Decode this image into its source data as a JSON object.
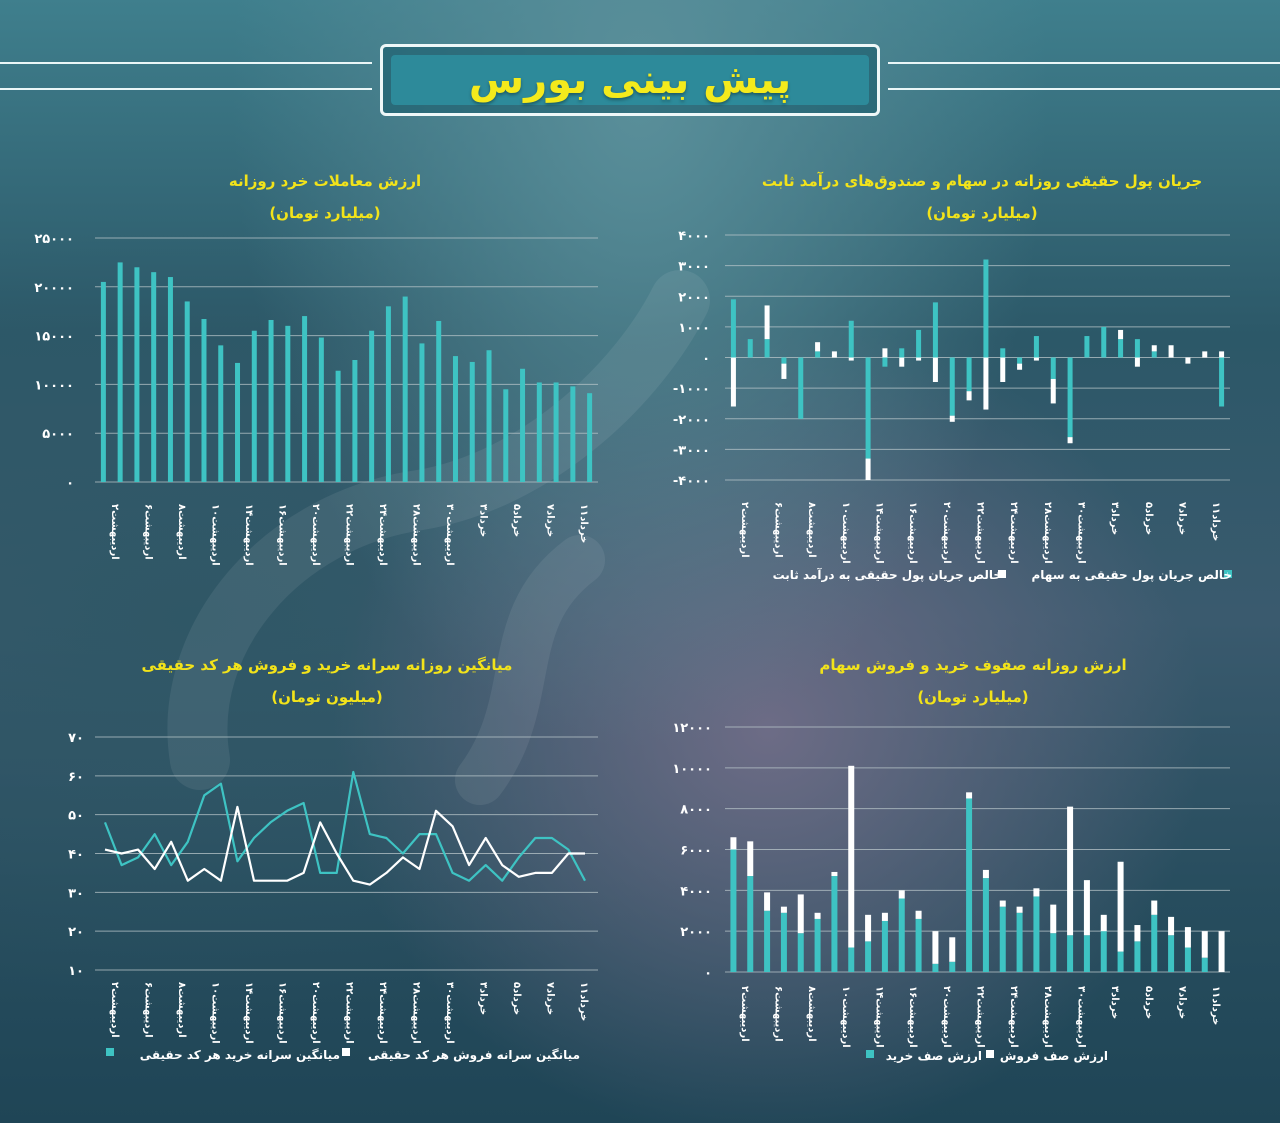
{
  "header": {
    "title": "پیش بینی بورس"
  },
  "colors": {
    "teal": "#3ec3c3",
    "white": "#ffffff",
    "title_yellow": "#f2e31a",
    "grid": "#b9c6ca"
  },
  "charts": [
    {
      "id": "tl",
      "title": "ارزش معاملات خرد روزانه",
      "subtitle": "(میلیارد تومان)"
    },
    {
      "id": "tr",
      "title": "جریان پول حقیقی روزانه در سهام و صندوق‌های درآمد ثابت",
      "subtitle": "(میلیارد تومان)",
      "legend": [
        "خالص جریان پول حقیقی به سهام",
        "خالص جریان پول حقیقی به درآمد ثابت"
      ]
    },
    {
      "id": "bl",
      "title": "میانگین روزانه سرانه خرید و فروش هر کد حقیقی",
      "subtitle": "(میلیون تومان)",
      "legend": [
        "میانگین سرانه خرید هر کد حقیقی",
        "میانگین سرانه فروش هر کد حقیقی"
      ]
    },
    {
      "id": "br",
      "title": "ارزش روزانه صفوف خرید و فروش سهام",
      "subtitle": "(میلیارد تومان)",
      "legend": [
        "ارزش صف خرید",
        "ارزش صف فروش"
      ]
    }
  ],
  "chart_data": [
    {
      "type": "bar",
      "title": "ارزش معاملات خرد روزانه",
      "ylabel": "(میلیارد تومان)",
      "ylim": [
        0,
        25000
      ],
      "yticks": [
        "۰",
        "۵۰۰۰",
        "۱۰۰۰۰",
        "۱۵۰۰۰",
        "۲۰۰۰۰",
        "۲۵۰۰۰"
      ],
      "xticklabels": [
        "اردیبهشت۲",
        "اردیبهشت۶",
        "اردیبهشت۸",
        "اردیبهشت۱۰",
        "اردیبهشت۱۴",
        "اردیبهشت۱۶",
        "اردیبهشت۲۰",
        "اردیبهشت۲۲",
        "اردیبهشت۲۴",
        "اردیبهشت۲۸",
        "اردیبهشت۳۰",
        "خرداد۳",
        "خرداد۵",
        "خرداد۷",
        "خرداد۱۱"
      ],
      "values": [
        20500,
        22500,
        22000,
        21500,
        21000,
        18500,
        16700,
        14000,
        12200,
        15500,
        16600,
        16000,
        17000,
        14800,
        11400,
        12500,
        15500,
        18000,
        19000,
        14200,
        16500,
        12900,
        12300,
        13500,
        9500,
        11600,
        10200,
        10200,
        9800,
        9100
      ]
    },
    {
      "type": "bar",
      "title": "جریان پول حقیقی روزانه در سهام و صندوق‌های درآمد ثابت",
      "ylabel": "(میلیارد تومان)",
      "ylim": [
        -4000,
        4000
      ],
      "yticks": [
        "-۴۰۰۰",
        "-۳۰۰۰",
        "-۲۰۰۰",
        "-۱۰۰۰",
        "۰",
        "۱۰۰۰",
        "۲۰۰۰",
        "۳۰۰۰",
        "۴۰۰۰"
      ],
      "xticklabels": [
        "اردیبهشت۲",
        "اردیبهشت۶",
        "اردیبهشت۸",
        "اردیبهشت۱۰",
        "اردیبهشت۱۴",
        "اردیبهشت۱۶",
        "اردیبهشت۲۰",
        "اردیبهشت۲۲",
        "اردیبهشت۲۴",
        "اردیبهشت۲۸",
        "اردیبهشت۳۰",
        "خرداد۳",
        "خرداد۵",
        "خرداد۷",
        "خرداد۱۱"
      ],
      "series": [
        {
          "name": "خالص جریان پول حقیقی به سهام",
          "values": [
            1900,
            600,
            600,
            -200,
            -2000,
            200,
            0,
            1200,
            -3300,
            -300,
            300,
            900,
            1800,
            -1900,
            -1100,
            3200,
            300,
            -200,
            700,
            -700,
            -2600,
            700,
            1000,
            600,
            600,
            200,
            0,
            0,
            0,
            -1600
          ]
        },
        {
          "name": "خالص جریان پول حقیقی به درآمد ثابت",
          "values": [
            -1600,
            0,
            1100,
            -500,
            0,
            300,
            200,
            -100,
            -700,
            300,
            -300,
            -100,
            -800,
            -200,
            -300,
            -1700,
            -800,
            -200,
            -100,
            -800,
            -200,
            0,
            0,
            300,
            -300,
            200,
            400,
            -200,
            200,
            200
          ]
        }
      ]
    },
    {
      "type": "line",
      "title": "میانگین روزانه سرانه خرید و فروش هر کد حقیقی",
      "ylabel": "(میلیون تومان)",
      "ylim": [
        10,
        70
      ],
      "yticks": [
        "۱۰",
        "۲۰",
        "۳۰",
        "۴۰",
        "۵۰",
        "۶۰",
        "۷۰"
      ],
      "xticklabels": [
        "اردیبهشت۲",
        "اردیبهشت۶",
        "اردیبهشت۸",
        "اردیبهشت۱۰",
        "اردیبهشت۱۴",
        "اردیبهشت۱۶",
        "اردیبهشت۲۰",
        "اردیبهشت۲۲",
        "اردیبهشت۲۴",
        "اردیبهشت۲۸",
        "اردیبهشت۳۰",
        "خرداد۳",
        "خرداد۵",
        "خرداد۷",
        "خرداد۱۱"
      ],
      "series": [
        {
          "name": "میانگین سرانه خرید هر کد حقیقی",
          "values": [
            48,
            37,
            39,
            45,
            37,
            43,
            55,
            58,
            38,
            44,
            48,
            51,
            53,
            35,
            35,
            61,
            45,
            44,
            40,
            45,
            45,
            35,
            33,
            37,
            33,
            39,
            44,
            44,
            41,
            33
          ]
        },
        {
          "name": "میانگین سرانه فروش هر کد حقیقی",
          "values": [
            41,
            40,
            41,
            36,
            43,
            33,
            36,
            33,
            52,
            33,
            33,
            33,
            35,
            48,
            40,
            33,
            32,
            35,
            39,
            36,
            51,
            47,
            37,
            44,
            37,
            34,
            35,
            35,
            40,
            40
          ]
        }
      ]
    },
    {
      "type": "bar",
      "title": "ارزش روزانه صفوف خرید و فروش سهام",
      "ylabel": "(میلیارد تومان)",
      "ylim": [
        0,
        12000
      ],
      "yticks": [
        "۰",
        "۲۰۰۰",
        "۴۰۰۰",
        "۶۰۰۰",
        "۸۰۰۰",
        "۱۰۰۰۰",
        "۱۲۰۰۰"
      ],
      "xticklabels": [
        "اردیبهشت۲",
        "اردیبهشت۶",
        "اردیبهشت۸",
        "اردیبهشت۱۰",
        "اردیبهشت۱۴",
        "اردیبهشت۱۶",
        "اردیبهشت۲۰",
        "اردیبهشت۲۲",
        "اردیبهشت۲۴",
        "اردیبهشت۲۸",
        "اردیبهشت۳۰",
        "خرداد۳",
        "خرداد۵",
        "خرداد۷",
        "خرداد۱۱"
      ],
      "series": [
        {
          "name": "ارزش صف خرید",
          "values": [
            6000,
            4700,
            3000,
            2900,
            1900,
            2600,
            4700,
            1200,
            1500,
            2500,
            3600,
            2600,
            400,
            500,
            8500,
            4600,
            3200,
            2900,
            3700,
            1900,
            1800,
            1800,
            2000,
            1000,
            1500,
            2800,
            1800,
            1200,
            700,
            0
          ]
        },
        {
          "name": "ارزش صف فروش",
          "values": [
            600,
            1700,
            900,
            300,
            1900,
            300,
            200,
            8900,
            1300,
            400,
            400,
            400,
            1600,
            1200,
            300,
            400,
            300,
            300,
            400,
            1400,
            6300,
            2700,
            800,
            4400,
            800,
            700,
            900,
            1000,
            1300,
            2000
          ]
        }
      ]
    }
  ]
}
